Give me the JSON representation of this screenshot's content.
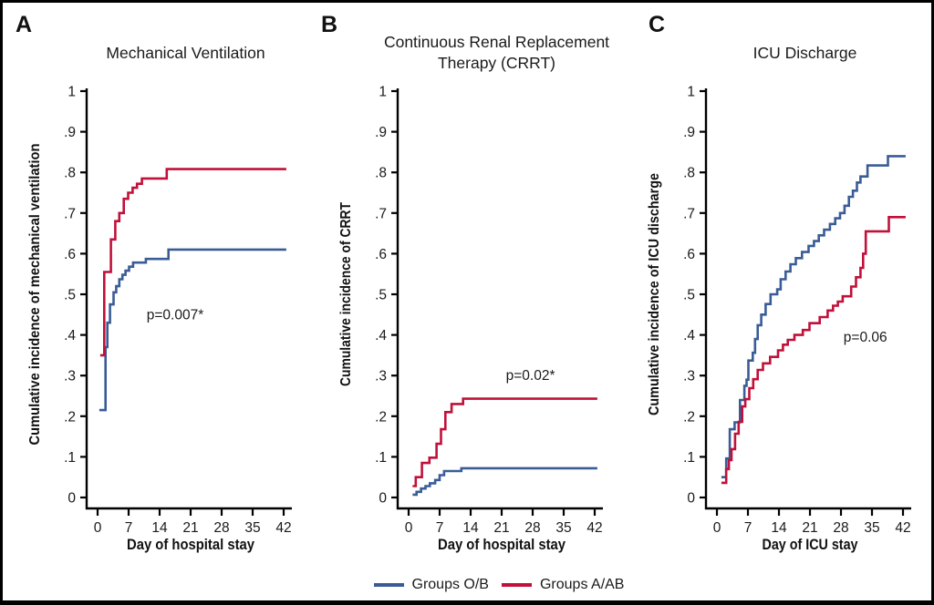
{
  "figure": {
    "background": "#ffffff",
    "border_color": "#000000",
    "text_color": "#1a1a1a"
  },
  "legend": {
    "position": "bottom-center",
    "items": [
      {
        "label": "Groups O/B",
        "color": "#3A5C96"
      },
      {
        "label": "Groups A/AB",
        "color": "#C11039"
      }
    ]
  },
  "chart_data": [
    {
      "type": "line",
      "subtype": "step-after-cumulative-incidence",
      "panel_letter": "A",
      "title": "Mechanical Ventilation",
      "xlabel": "Day of hospital stay",
      "ylabel": "Cumulative incidence of mechanical ventilation",
      "annotation": {
        "text": "p=0.007*",
        "day": 17.5,
        "value": 0.45
      },
      "xlim": [
        0,
        42
      ],
      "ylim": [
        0,
        1
      ],
      "xticks": [
        0,
        7,
        14,
        21,
        28,
        35,
        42
      ],
      "ytick_values": [
        0,
        0.1,
        0.2,
        0.3,
        0.4,
        0.5,
        0.6,
        0.7,
        0.8,
        0.9,
        1
      ],
      "ytick_labels": [
        "0",
        ".1",
        ".2",
        ".3",
        ".4",
        ".5",
        ".6",
        ".7",
        ".8",
        ".9",
        "1"
      ],
      "grid": false,
      "series": [
        {
          "name": "Groups O/B",
          "color": "#3A5C96",
          "points": [
            [
              0.4,
              0.215
            ],
            [
              1.8,
              0.37
            ],
            [
              2.2,
              0.43
            ],
            [
              2.8,
              0.475
            ],
            [
              3.6,
              0.505
            ],
            [
              4.2,
              0.52
            ],
            [
              4.9,
              0.537
            ],
            [
              5.6,
              0.548
            ],
            [
              6.3,
              0.558
            ],
            [
              7.1,
              0.568
            ],
            [
              8,
              0.578
            ],
            [
              10.9,
              0.587
            ],
            [
              16,
              0.61
            ],
            [
              42.6,
              0.61
            ]
          ]
        },
        {
          "name": "Groups A/AB",
          "color": "#C11039",
          "points": [
            [
              0.6,
              0.35
            ],
            [
              1.5,
              0.555
            ],
            [
              3,
              0.635
            ],
            [
              4,
              0.68
            ],
            [
              4.9,
              0.7
            ],
            [
              5.9,
              0.735
            ],
            [
              6.9,
              0.75
            ],
            [
              7.9,
              0.762
            ],
            [
              8.9,
              0.772
            ],
            [
              10,
              0.785
            ],
            [
              15.6,
              0.808
            ],
            [
              42.6,
              0.808
            ]
          ]
        }
      ]
    },
    {
      "type": "line",
      "subtype": "step-after-cumulative-incidence",
      "panel_letter": "B",
      "title": "Continuous Renal Replacement\nTherapy (CRRT)",
      "xlabel": "Day of hospital stay",
      "ylabel": "Cumulative incidence of CRRT",
      "annotation": {
        "text": "p=0.02*",
        "day": 27.5,
        "value": 0.3
      },
      "xlim": [
        0,
        42
      ],
      "ylim": [
        0,
        1
      ],
      "xticks": [
        0,
        7,
        14,
        21,
        28,
        35,
        42
      ],
      "ytick_values": [
        0,
        0.1,
        0.2,
        0.3,
        0.4,
        0.5,
        0.6,
        0.7,
        0.8,
        0.9,
        1
      ],
      "ytick_labels": [
        "0",
        ".1",
        ".2",
        ".3",
        ".4",
        ".5",
        ".6",
        ".7",
        ".8",
        ".9",
        "1"
      ],
      "grid": false,
      "series": [
        {
          "name": "Groups O/B",
          "color": "#3A5C96",
          "points": [
            [
              0.9,
              0.007
            ],
            [
              1.8,
              0.014
            ],
            [
              2.8,
              0.022
            ],
            [
              3.8,
              0.028
            ],
            [
              4.8,
              0.035
            ],
            [
              6,
              0.043
            ],
            [
              7,
              0.055
            ],
            [
              8,
              0.065
            ],
            [
              11.9,
              0.072
            ],
            [
              42.6,
              0.072
            ]
          ]
        },
        {
          "name": "Groups A/AB",
          "color": "#C11039",
          "points": [
            [
              0.9,
              0.028
            ],
            [
              1.6,
              0.05
            ],
            [
              3,
              0.085
            ],
            [
              4.7,
              0.098
            ],
            [
              6.3,
              0.132
            ],
            [
              7.3,
              0.168
            ],
            [
              8.3,
              0.21
            ],
            [
              9.7,
              0.23
            ],
            [
              12.3,
              0.243
            ],
            [
              42.6,
              0.243
            ]
          ]
        }
      ]
    },
    {
      "type": "line",
      "subtype": "step-after-cumulative-incidence",
      "panel_letter": "C",
      "title": "ICU Discharge",
      "xlabel": "Day of ICU stay",
      "ylabel": "Cumulative incidence of ICU discharge",
      "annotation": {
        "text": "p=0.06",
        "day": 33.5,
        "value": 0.395
      },
      "xlim": [
        0,
        42
      ],
      "ylim": [
        0,
        1
      ],
      "xticks": [
        0,
        7,
        14,
        21,
        28,
        35,
        42
      ],
      "ytick_values": [
        0,
        0.1,
        0.2,
        0.3,
        0.4,
        0.5,
        0.6,
        0.7,
        0.8,
        0.9,
        1
      ],
      "ytick_labels": [
        "0",
        ".1",
        ".2",
        ".3",
        ".4",
        ".5",
        ".6",
        ".7",
        ".8",
        ".9",
        "1"
      ],
      "grid": false,
      "series": [
        {
          "name": "Groups O/B",
          "color": "#3A5C96",
          "points": [
            [
              1,
              0.05
            ],
            [
              2.1,
              0.096
            ],
            [
              2.9,
              0.168
            ],
            [
              4,
              0.185
            ],
            [
              5.2,
              0.24
            ],
            [
              6.2,
              0.275
            ],
            [
              6.7,
              0.29
            ],
            [
              7.1,
              0.337
            ],
            [
              8.1,
              0.356
            ],
            [
              8.6,
              0.39
            ],
            [
              9.2,
              0.424
            ],
            [
              10,
              0.45
            ],
            [
              11,
              0.476
            ],
            [
              12.1,
              0.5
            ],
            [
              13.6,
              0.512
            ],
            [
              14.4,
              0.537
            ],
            [
              15.5,
              0.556
            ],
            [
              16.6,
              0.574
            ],
            [
              17.8,
              0.589
            ],
            [
              19.2,
              0.604
            ],
            [
              20.7,
              0.619
            ],
            [
              21.9,
              0.631
            ],
            [
              23,
              0.645
            ],
            [
              24.2,
              0.659
            ],
            [
              25.5,
              0.673
            ],
            [
              26.7,
              0.687
            ],
            [
              27.8,
              0.7
            ],
            [
              28.8,
              0.718
            ],
            [
              29.8,
              0.74
            ],
            [
              30.7,
              0.755
            ],
            [
              31.6,
              0.775
            ],
            [
              32.4,
              0.79
            ],
            [
              34,
              0.817
            ],
            [
              38.6,
              0.84
            ],
            [
              42.6,
              0.84
            ]
          ]
        },
        {
          "name": "Groups A/AB",
          "color": "#C11039",
          "points": [
            [
              1,
              0.036
            ],
            [
              2.1,
              0.07
            ],
            [
              2.7,
              0.092
            ],
            [
              3.3,
              0.119
            ],
            [
              4.1,
              0.157
            ],
            [
              4.9,
              0.186
            ],
            [
              5.7,
              0.224
            ],
            [
              6.4,
              0.242
            ],
            [
              7.3,
              0.269
            ],
            [
              8.2,
              0.291
            ],
            [
              9.2,
              0.314
            ],
            [
              10.4,
              0.33
            ],
            [
              12,
              0.346
            ],
            [
              13.8,
              0.362
            ],
            [
              14.9,
              0.376
            ],
            [
              16,
              0.388
            ],
            [
              17.5,
              0.4
            ],
            [
              19.4,
              0.412
            ],
            [
              20.9,
              0.429
            ],
            [
              23.2,
              0.444
            ],
            [
              25,
              0.46
            ],
            [
              26.2,
              0.472
            ],
            [
              27.3,
              0.482
            ],
            [
              28.4,
              0.495
            ],
            [
              30.3,
              0.519
            ],
            [
              31.4,
              0.542
            ],
            [
              32.4,
              0.565
            ],
            [
              33,
              0.6
            ],
            [
              33.6,
              0.655
            ],
            [
              38.8,
              0.69
            ],
            [
              42.6,
              0.69
            ]
          ]
        }
      ]
    }
  ]
}
